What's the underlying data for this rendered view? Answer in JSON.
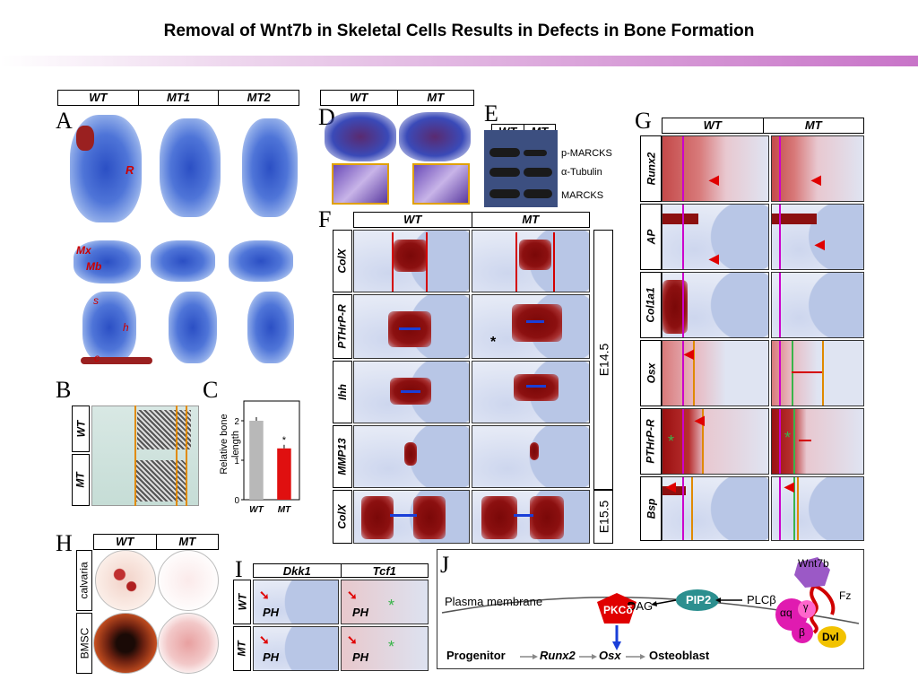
{
  "title": "Removal of Wnt7b in Skeletal Cells Results in Defects in Bone Formation",
  "panels": {
    "A": {
      "letter": "A",
      "headers": [
        "WT",
        "MT1",
        "MT2"
      ],
      "labels": {
        "R": "R",
        "Mx": "Mx",
        "Mb": "Mb",
        "s": "s",
        "h": "h",
        "c": "c"
      }
    },
    "B": {
      "letter": "B",
      "rows": [
        "WT",
        "MT"
      ]
    },
    "C": {
      "letter": "C",
      "ylabel": "Relative bone length",
      "ylim": [
        0,
        0.25
      ],
      "yticks": [
        "0",
        "0.1",
        "0.2"
      ],
      "categories": [
        "WT",
        "MT"
      ],
      "star": "*"
    },
    "D": {
      "letter": "D",
      "headers": [
        "WT",
        "MT"
      ]
    },
    "E": {
      "letter": "E",
      "headers": [
        "WT",
        "MT"
      ],
      "bands": [
        "p-MARCKS",
        "α-Tubulin",
        "MARCKS"
      ]
    },
    "F": {
      "letter": "F",
      "headers": [
        "WT",
        "MT"
      ],
      "rows": [
        "ColX",
        "PTHrP-R",
        "Ihh",
        "MMP13",
        "ColX"
      ],
      "stages": [
        "E14.5",
        "E15.5"
      ]
    },
    "G": {
      "letter": "G",
      "headers": [
        "WT",
        "MT"
      ],
      "rows": [
        "Runx2",
        "AP",
        "Col1a1",
        "Osx",
        "PTHrP-R",
        "Bsp"
      ]
    },
    "H": {
      "letter": "H",
      "headers": [
        "WT",
        "MT"
      ],
      "rows": [
        "calvaria",
        "BMSC"
      ]
    },
    "I": {
      "letter": "I",
      "headers": [
        "Dkk1",
        "Tcf1"
      ],
      "rows": [
        "WT",
        "MT"
      ],
      "ph": "PH"
    },
    "J": {
      "letter": "J",
      "membrane": "Plasma membrane",
      "wnt": "Wnt7b",
      "fz": "Fz",
      "dvl": "Dvl",
      "galpha": "αq",
      "ggamma": "γ",
      "gbeta": "β",
      "plc": "PLCβ",
      "pip2": "PIP2",
      "dag": "DAG",
      "pkc": "PKCδ",
      "progenitor": "Progenitor",
      "runx2": "Runx2",
      "osx": "Osx",
      "osteoblast": "Osteoblast"
    }
  },
  "chart_data": {
    "type": "bar",
    "categories": [
      "WT",
      "MT"
    ],
    "values": [
      0.2,
      0.13
    ],
    "ylabel": "Relative bone length",
    "ylim": [
      0,
      0.25
    ],
    "yticks": [
      0,
      0.1,
      0.2
    ],
    "colors": [
      "#b8b8b8",
      "#e01010"
    ],
    "annotations": [
      "*"
    ]
  }
}
